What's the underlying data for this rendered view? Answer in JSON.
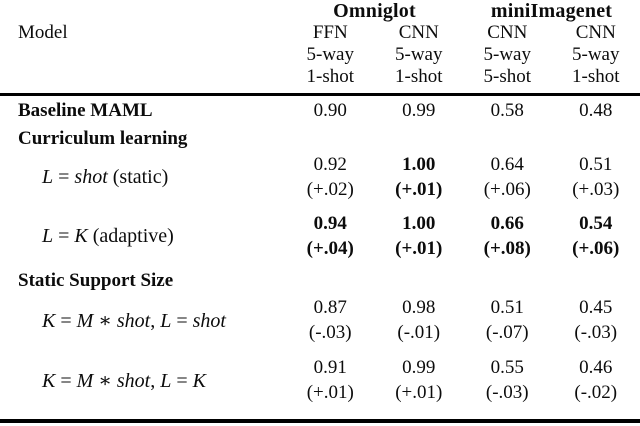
{
  "table": {
    "groups": [
      {
        "label": "Omniglot"
      },
      {
        "label": "miniImagenet"
      }
    ],
    "model_col_header": "Model",
    "columns": [
      {
        "arch": "FFN",
        "way": "5-way",
        "shot": "1-shot"
      },
      {
        "arch": "CNN",
        "way": "5-way",
        "shot": "1-shot"
      },
      {
        "arch": "CNN",
        "way": "5-way",
        "shot": "5-shot"
      },
      {
        "arch": "CNN",
        "way": "5-way",
        "shot": "1-shot"
      }
    ],
    "rows": [
      {
        "kind": "section_with_values",
        "label": "Baseline MAML",
        "cells": [
          {
            "value": "0.90",
            "bold": false
          },
          {
            "value": "0.99",
            "bold": false
          },
          {
            "value": "0.58",
            "bold": false
          },
          {
            "value": "0.48",
            "bold": false
          }
        ]
      },
      {
        "kind": "section",
        "label": "Curriculum learning"
      },
      {
        "kind": "data",
        "label_segments": [
          {
            "text": "L",
            "italic": true
          },
          {
            "text": " = ",
            "italic": false
          },
          {
            "text": "shot",
            "italic": true
          },
          {
            "text": " (static)",
            "italic": false
          }
        ],
        "cells": [
          {
            "value": "0.92",
            "delta": "(+.02)",
            "bold": false
          },
          {
            "value": "1.00",
            "delta": "(+.01)",
            "bold": true
          },
          {
            "value": "0.64",
            "delta": "(+.06)",
            "bold": false
          },
          {
            "value": "0.51",
            "delta": "(+.03)",
            "bold": false
          }
        ]
      },
      {
        "kind": "data",
        "label_segments": [
          {
            "text": "L",
            "italic": true
          },
          {
            "text": " = ",
            "italic": false
          },
          {
            "text": "K",
            "italic": true
          },
          {
            "text": " (adaptive)",
            "italic": false
          }
        ],
        "cells": [
          {
            "value": "0.94",
            "delta": "(+.04)",
            "bold": true
          },
          {
            "value": "1.00",
            "delta": "(+.01)",
            "bold": true
          },
          {
            "value": "0.66",
            "delta": "(+.08)",
            "bold": true
          },
          {
            "value": "0.54",
            "delta": "(+.06)",
            "bold": true
          }
        ]
      },
      {
        "kind": "section",
        "label": "Static Support Size"
      },
      {
        "kind": "data",
        "label_segments": [
          {
            "text": "K",
            "italic": true
          },
          {
            "text": " = ",
            "italic": false
          },
          {
            "text": "M",
            "italic": true
          },
          {
            "text": " ∗ ",
            "italic": false
          },
          {
            "text": "shot",
            "italic": true
          },
          {
            "text": ", ",
            "italic": false
          },
          {
            "text": "L",
            "italic": true
          },
          {
            "text": " = ",
            "italic": false
          },
          {
            "text": "shot",
            "italic": true
          }
        ],
        "cells": [
          {
            "value": "0.87",
            "delta": "(-.03)",
            "bold": false
          },
          {
            "value": "0.98",
            "delta": "(-.01)",
            "bold": false
          },
          {
            "value": "0.51",
            "delta": "(-.07)",
            "bold": false
          },
          {
            "value": "0.45",
            "delta": "(-.03)",
            "bold": false
          }
        ]
      },
      {
        "kind": "data",
        "label_segments": [
          {
            "text": "K",
            "italic": true
          },
          {
            "text": " = ",
            "italic": false
          },
          {
            "text": "M",
            "italic": true
          },
          {
            "text": " ∗ ",
            "italic": false
          },
          {
            "text": "shot",
            "italic": true
          },
          {
            "text": ", ",
            "italic": false
          },
          {
            "text": "L",
            "italic": true
          },
          {
            "text": " = ",
            "italic": false
          },
          {
            "text": "K",
            "italic": true
          }
        ],
        "cells": [
          {
            "value": "0.91",
            "delta": "(+.01)",
            "bold": false
          },
          {
            "value": "0.99",
            "delta": "(+.01)",
            "bold": false
          },
          {
            "value": "0.55",
            "delta": "(-.03)",
            "bold": false
          },
          {
            "value": "0.46",
            "delta": "(-.02)",
            "bold": false
          }
        ]
      }
    ],
    "colors": {
      "text": "#0c0c0c",
      "rule": "#000000",
      "background": "#ffffff"
    }
  }
}
